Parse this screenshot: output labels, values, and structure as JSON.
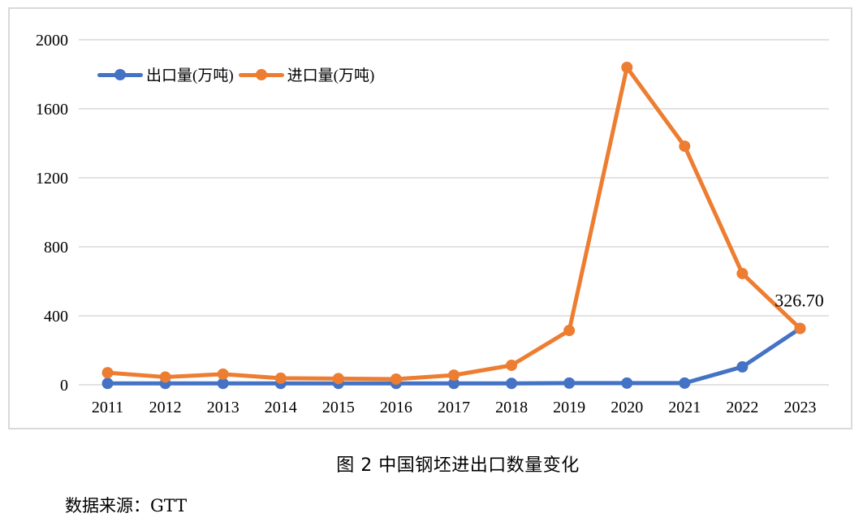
{
  "chart_data": {
    "type": "line",
    "title": "图 2  中国钢坯进出口数量变化",
    "xlabel": "",
    "ylabel": "",
    "categories": [
      "2011",
      "2012",
      "2013",
      "2014",
      "2015",
      "2016",
      "2017",
      "2018",
      "2019",
      "2020",
      "2021",
      "2022",
      "2023"
    ],
    "series": [
      {
        "name": "出口量(万吨)",
        "color": "#4472c4",
        "values": [
          8,
          8,
          8,
          8,
          8,
          8,
          8,
          8,
          10,
          10,
          10,
          104,
          326.7
        ]
      },
      {
        "name": "进口量(万吨)",
        "color": "#ed7d31",
        "values": [
          70,
          45,
          62,
          38,
          36,
          33,
          56,
          113,
          315,
          1840,
          1383,
          645,
          326.7
        ]
      }
    ],
    "ylim": [
      0,
      2000
    ],
    "yticks": [
      "0",
      "400",
      "800",
      "1200",
      "1600",
      "2000"
    ],
    "grid": true,
    "legend_position": "top-left inside",
    "annotations": [
      {
        "category": "2023",
        "text": "326.70"
      }
    ]
  },
  "legend": {
    "export_label": "出口量(万吨)",
    "import_label": "进口量(万吨)"
  },
  "caption": "图 2  中国钢坯进出口数量变化",
  "source": "数据来源：GTT"
}
